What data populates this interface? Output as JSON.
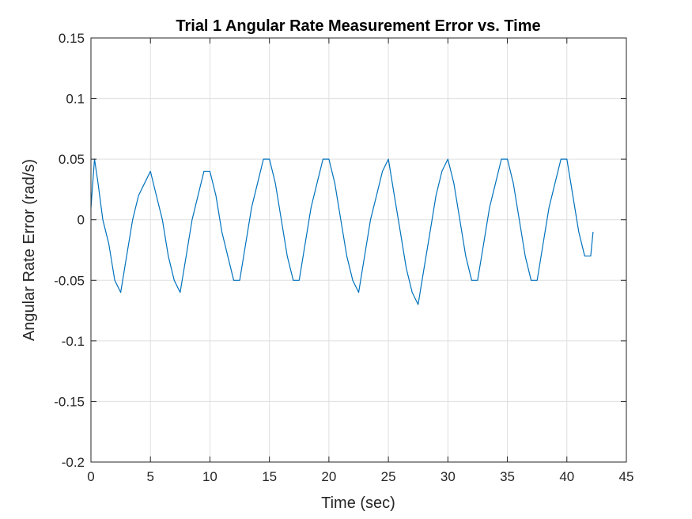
{
  "chart_data": {
    "type": "line",
    "title": "Trial 1 Angular Rate Measurement Error vs. Time",
    "xlabel": "Time (sec)",
    "ylabel": "Angular Rate Error (rad/s)",
    "xlim": [
      0,
      45
    ],
    "ylim": [
      -0.2,
      0.15
    ],
    "xticks": [
      0,
      5,
      10,
      15,
      20,
      25,
      30,
      35,
      40,
      45
    ],
    "xtick_labels": [
      "0",
      "5",
      "10",
      "15",
      "20",
      "25",
      "30",
      "35",
      "40",
      "45"
    ],
    "yticks": [
      -0.2,
      -0.15,
      -0.1,
      -0.05,
      0,
      0.05,
      0.1,
      0.15
    ],
    "ytick_labels": [
      "-0.2",
      "-0.15",
      "-0.1",
      "-0.05",
      "0",
      "0.05",
      "0.1",
      "0.15"
    ],
    "grid": true,
    "line_color": "#0072bd",
    "series": [
      {
        "x": [
          0,
          0.3,
          0.6,
          1.0,
          1.5,
          2.0,
          2.5,
          3.0,
          3.5,
          4.0,
          4.5,
          5.0,
          5.5,
          6.0,
          6.5,
          7.0,
          7.5,
          8.0,
          8.5,
          9.0,
          9.5,
          10.0,
          10.5,
          11.0,
          11.5,
          12.0,
          12.5,
          13.0,
          13.5,
          14.0,
          14.5,
          15.0,
          15.5,
          16.0,
          16.5,
          17.0,
          17.5,
          18.0,
          18.5,
          19.0,
          19.5,
          20.0,
          20.5,
          21.0,
          21.5,
          22.0,
          22.5,
          23.0,
          23.5,
          24.0,
          24.5,
          25.0,
          25.5,
          26.0,
          26.5,
          27.0,
          27.5,
          28.0,
          28.5,
          29.0,
          29.5,
          30.0,
          30.5,
          31.0,
          31.5,
          32.0,
          32.5,
          33.0,
          33.5,
          34.0,
          34.5,
          35.0,
          35.5,
          36.0,
          36.5,
          37.0,
          37.5,
          38.0,
          38.5,
          39.0,
          39.5,
          40.0,
          40.5,
          41.0,
          41.5,
          42.0,
          42.2
        ],
        "y": [
          0.01,
          0.05,
          0.03,
          0.0,
          -0.02,
          -0.05,
          -0.06,
          -0.03,
          0.0,
          0.02,
          0.03,
          0.04,
          0.02,
          0.0,
          -0.03,
          -0.05,
          -0.06,
          -0.03,
          0.0,
          0.02,
          0.04,
          0.04,
          0.02,
          -0.01,
          -0.03,
          -0.05,
          -0.05,
          -0.02,
          0.01,
          0.03,
          0.05,
          0.05,
          0.03,
          0.0,
          -0.03,
          -0.05,
          -0.05,
          -0.02,
          0.01,
          0.03,
          0.05,
          0.05,
          0.03,
          0.0,
          -0.03,
          -0.05,
          -0.06,
          -0.03,
          0.0,
          0.02,
          0.04,
          0.05,
          0.02,
          -0.01,
          -0.04,
          -0.06,
          -0.07,
          -0.04,
          -0.01,
          0.02,
          0.04,
          0.05,
          0.03,
          0.0,
          -0.03,
          -0.05,
          -0.05,
          -0.02,
          0.01,
          0.03,
          0.05,
          0.05,
          0.03,
          0.0,
          -0.03,
          -0.05,
          -0.05,
          -0.02,
          0.01,
          0.03,
          0.05,
          0.05,
          0.02,
          -0.01,
          -0.03,
          -0.03,
          -0.01
        ]
      }
    ]
  }
}
